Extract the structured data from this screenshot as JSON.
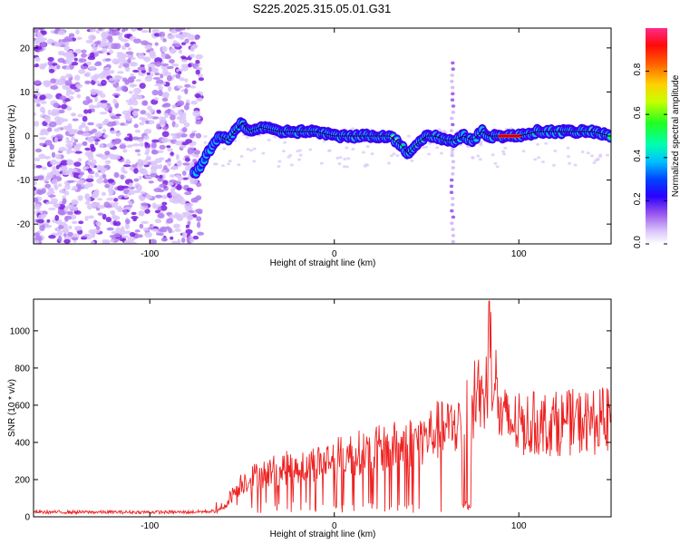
{
  "figure_title": "S225.2025.315.05.01.G31",
  "chart_data": [
    {
      "type": "heatmap",
      "title": "S225.2025.315.05.01.G31",
      "xlabel": "Height of straight line (km)",
      "ylabel": "Frequency (Hz)",
      "xlim": [
        -163,
        150
      ],
      "ylim": [
        -24.5,
        24.5
      ],
      "xticks": [
        -100,
        0,
        100
      ],
      "xtick_labels": [
        "-100",
        "0",
        "100"
      ],
      "yticks": [
        -20,
        -10,
        0,
        10,
        20
      ],
      "ytick_labels": [
        "-20",
        "-10",
        "0",
        "10",
        "20"
      ],
      "colorbar": {
        "label": "Normalized spectral amplitude",
        "range": [
          0,
          1
        ],
        "ticks": [
          0.0,
          0.2,
          0.4,
          0.6,
          0.8
        ],
        "tick_labels": [
          "0.0",
          "0.2",
          "0.4",
          "0.6",
          "0.8"
        ],
        "colormap": [
          "#ffffff",
          "#b48cf0",
          "#7a1fe0",
          "#0000ff",
          "#00c8ff",
          "#00ff80",
          "#80ff00",
          "#ffff00",
          "#ff8000",
          "#ff0000",
          "#ff1a80"
        ]
      },
      "noise_region_x": [
        -163,
        -72
      ],
      "ridge": {
        "x": [
          -74,
          -70,
          -66,
          -62,
          -58,
          -54,
          -50,
          -46,
          -40,
          -30,
          -20,
          -10,
          0,
          10,
          20,
          30,
          36,
          40,
          44,
          50,
          55,
          60,
          65,
          70,
          75,
          80,
          84,
          90,
          100,
          110,
          120,
          130,
          140,
          150
        ],
        "freq": [
          -8,
          -5,
          -2,
          0,
          -1,
          1,
          3,
          1,
          2,
          1,
          1,
          1,
          0,
          0,
          0,
          0,
          -2,
          -4,
          -2,
          0,
          0,
          -1,
          -1,
          0,
          -1,
          1,
          0,
          0,
          0,
          1,
          1,
          1,
          1,
          0
        ],
        "amp": [
          0.3,
          0.4,
          0.35,
          0.3,
          0.3,
          0.3,
          0.35,
          0.35,
          0.4,
          0.45,
          0.45,
          0.45,
          0.5,
          0.6,
          0.65,
          0.75,
          0.45,
          0.4,
          0.45,
          0.55,
          0.7,
          0.45,
          0.4,
          0.35,
          0.4,
          0.45,
          0.55,
          0.75,
          0.95,
          0.5,
          0.5,
          0.55,
          0.5,
          0.55
        ]
      },
      "spike_x": 64
    },
    {
      "type": "line",
      "xlabel": "Height of straight line (km)",
      "ylabel": "SNR (10 * v/v)",
      "xlim": [
        -163,
        150
      ],
      "ylim": [
        0,
        1170
      ],
      "xticks": [
        -100,
        0,
        100
      ],
      "xtick_labels": [
        "-100",
        "0",
        "100"
      ],
      "yticks": [
        0,
        200,
        400,
        600,
        800,
        1000
      ],
      "ytick_labels": [
        "0",
        "200",
        "400",
        "600",
        "800",
        "1000"
      ],
      "color": "#ee2222",
      "envelope": {
        "x": [
          -163,
          -80,
          -64,
          -60,
          -55,
          -50,
          -40,
          -30,
          -20,
          -10,
          0,
          10,
          20,
          30,
          40,
          50,
          55,
          60,
          65,
          70,
          75,
          78,
          80,
          85,
          90,
          100,
          110,
          120,
          130,
          140,
          150
        ],
        "y": [
          25,
          25,
          30,
          60,
          150,
          220,
          270,
          300,
          320,
          340,
          370,
          400,
          420,
          440,
          470,
          500,
          550,
          540,
          580,
          620,
          700,
          850,
          700,
          1050,
          620,
          580,
          590,
          590,
          600,
          600,
          610
        ]
      },
      "peak": {
        "x": 84,
        "y": 1160
      }
    }
  ]
}
